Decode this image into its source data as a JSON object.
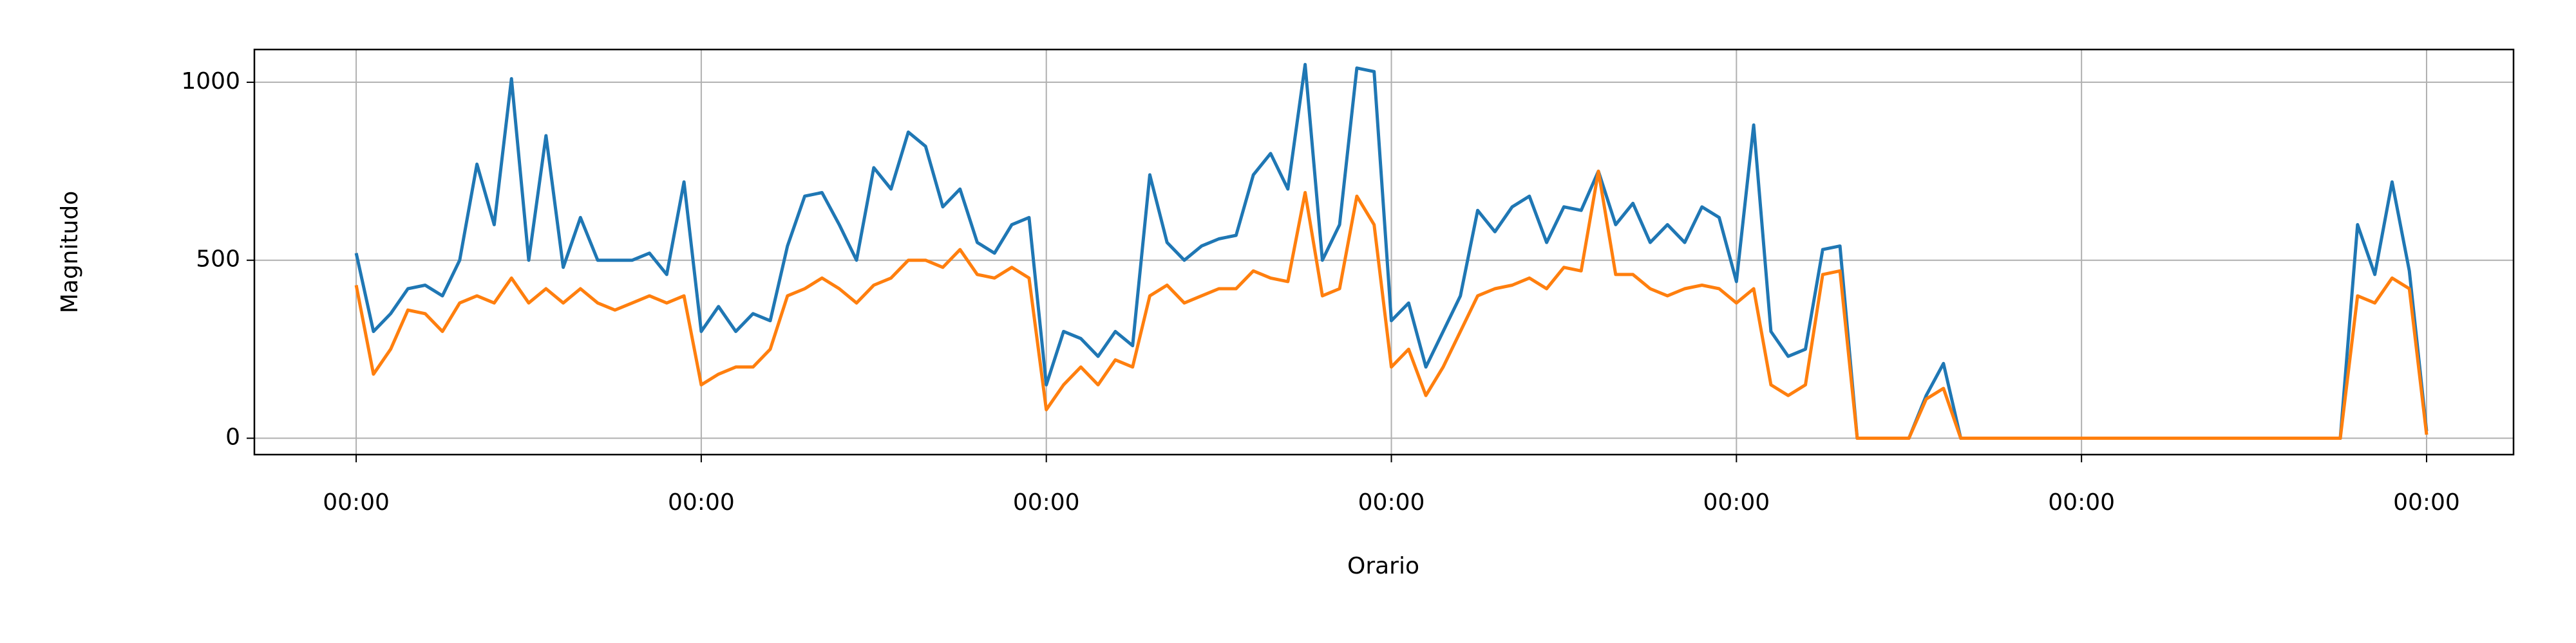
{
  "chart_data": {
    "type": "line",
    "xlabel": "Orario",
    "ylabel": "Magnitudo",
    "x": [
      0,
      0.05,
      0.1,
      0.15,
      0.2,
      0.25,
      0.3,
      0.35,
      0.4,
      0.45,
      0.5,
      0.55,
      0.6,
      0.65,
      0.7,
      0.75,
      0.8,
      0.85,
      0.9,
      0.95,
      1,
      1.05,
      1.1,
      1.15,
      1.2,
      1.25,
      1.3,
      1.35,
      1.4,
      1.45,
      1.5,
      1.55,
      1.6,
      1.65,
      1.7,
      1.75,
      1.8,
      1.85,
      1.9,
      1.95,
      2,
      2.05,
      2.1,
      2.15,
      2.2,
      2.25,
      2.3,
      2.35,
      2.4,
      2.45,
      2.5,
      2.55,
      2.6,
      2.65,
      2.7,
      2.75,
      2.8,
      2.85,
      2.9,
      2.95,
      3,
      3.05,
      3.1,
      3.15,
      3.2,
      3.25,
      3.3,
      3.35,
      3.4,
      3.45,
      3.5,
      3.55,
      3.6,
      3.65,
      3.7,
      3.75,
      3.8,
      3.85,
      3.9,
      3.95,
      4,
      4.05,
      4.1,
      4.15,
      4.2,
      4.25,
      4.3,
      4.35,
      4.4,
      4.45,
      4.5,
      4.55,
      4.6,
      4.65,
      4.7,
      4.75,
      4.8,
      4.85,
      4.9,
      4.95,
      5,
      5.05,
      5.1,
      5.15,
      5.2,
      5.25,
      5.3,
      5.35,
      5.4,
      5.45,
      5.5,
      5.55,
      5.6,
      5.65,
      5.7,
      5.75,
      5.8,
      5.85,
      5.9,
      5.95,
      6
    ],
    "series": [
      {
        "color": "#1f77b4",
        "values": [
          520,
          300,
          350,
          420,
          430,
          400,
          500,
          770,
          600,
          1010,
          500,
          850,
          480,
          620,
          500,
          500,
          500,
          520,
          460,
          720,
          300,
          370,
          300,
          350,
          330,
          540,
          680,
          690,
          600,
          500,
          760,
          700,
          860,
          820,
          650,
          700,
          550,
          520,
          600,
          620,
          150,
          300,
          280,
          230,
          300,
          260,
          740,
          550,
          500,
          540,
          560,
          570,
          740,
          800,
          700,
          1050,
          500,
          600,
          1040,
          1030,
          330,
          380,
          200,
          300,
          400,
          640,
          580,
          650,
          680,
          550,
          650,
          640,
          750,
          600,
          660,
          550,
          600,
          550,
          650,
          620,
          440,
          880,
          300,
          230,
          250,
          530,
          540,
          0,
          0,
          0,
          0,
          120,
          210,
          0,
          0,
          0,
          0,
          0,
          0,
          0,
          0,
          0,
          0,
          0,
          0,
          0,
          0,
          0,
          0,
          0,
          0,
          0,
          0,
          0,
          0,
          0,
          600,
          460,
          720,
          470,
          20
        ]
      },
      {
        "color": "#ff7f0e",
        "values": [
          430,
          180,
          250,
          360,
          350,
          300,
          380,
          400,
          380,
          450,
          380,
          420,
          380,
          420,
          380,
          360,
          380,
          400,
          380,
          400,
          150,
          180,
          200,
          200,
          250,
          400,
          420,
          450,
          420,
          380,
          430,
          450,
          500,
          500,
          480,
          530,
          460,
          450,
          480,
          450,
          80,
          150,
          200,
          150,
          220,
          200,
          400,
          430,
          380,
          400,
          420,
          420,
          470,
          450,
          440,
          690,
          400,
          420,
          680,
          600,
          200,
          250,
          120,
          200,
          300,
          400,
          420,
          430,
          450,
          420,
          480,
          470,
          750,
          460,
          460,
          420,
          400,
          420,
          430,
          420,
          380,
          420,
          150,
          120,
          150,
          460,
          470,
          0,
          0,
          0,
          0,
          110,
          140,
          0,
          0,
          0,
          0,
          0,
          0,
          0,
          0,
          0,
          0,
          0,
          0,
          0,
          0,
          0,
          0,
          0,
          0,
          0,
          0,
          0,
          0,
          0,
          400,
          380,
          450,
          420,
          10
        ]
      }
    ],
    "xlim": [
      -0.295,
      6.252
    ],
    "xticks": [
      {
        "value": 0,
        "label": "00:00"
      },
      {
        "value": 1,
        "label": "00:00"
      },
      {
        "value": 2,
        "label": "00:00"
      },
      {
        "value": 3,
        "label": "00:00"
      },
      {
        "value": 4,
        "label": "00:00"
      },
      {
        "value": 5,
        "label": "00:00"
      },
      {
        "value": 6,
        "label": "00:00"
      }
    ],
    "ylim": [
      -46,
      1092
    ],
    "yticks": [
      0,
      500,
      1000
    ],
    "grid": true
  }
}
